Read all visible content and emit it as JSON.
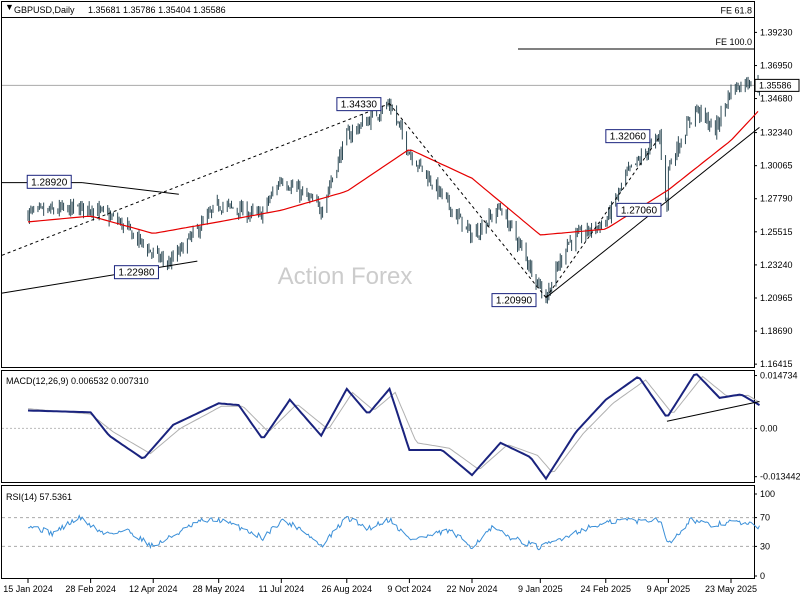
{
  "header": {
    "symbol": "GBPUSD,Daily",
    "ohlc": "1.35681 1.35786 1.35404 1.35586",
    "watermark": "Action Forex"
  },
  "colors": {
    "candle": "#2e4a55",
    "ma": "#e60000",
    "macd_line": "#1a237e",
    "signal_line": "#b0b0b0",
    "rsi_line": "#3a8fd8",
    "price_box": "#ffffff",
    "annotation_border": "#1a237e"
  },
  "chart_data": [
    {
      "type": "candlestick",
      "title": "GBPUSD,Daily",
      "x_ticks": [
        "15 Jan 2024",
        "28 Feb 2024",
        "12 Apr 2024",
        "28 May 2024",
        "11 Jul 2024",
        "26 Aug 2024",
        "9 Oct 2024",
        "22 Nov 2024",
        "9 Jan 2025",
        "24 Feb 2025",
        "9 Apr 2025",
        "23 May 2025"
      ],
      "y_ticks": [
        "1.39230",
        "1.36950",
        "1.34680",
        "1.32340",
        "1.30065",
        "1.27790",
        "1.25515",
        "1.23240",
        "1.20965",
        "1.18690",
        "1.16415"
      ],
      "ylim": [
        1.1615,
        1.4132
      ],
      "last_price": "1.35586",
      "trend_path": [
        [
          "15 Jan 2024",
          1.268
        ],
        [
          "28 Feb 2024",
          1.272
        ],
        [
          "19 Mar 2024",
          1.262
        ],
        [
          "12 Apr 2024",
          1.24
        ],
        [
          "23 Apr 2024",
          1.233
        ],
        [
          "28 May 2024",
          1.274
        ],
        [
          "26 Jun 2024",
          1.266
        ],
        [
          "11 Jul 2024",
          1.292
        ],
        [
          "8 Aug 2024",
          1.271
        ],
        [
          "26 Aug 2024",
          1.321
        ],
        [
          "25 Sep 2024",
          1.3433
        ],
        [
          "9 Oct 2024",
          1.31
        ],
        [
          "22 Nov 2024",
          1.252
        ],
        [
          "12 Dec 2024",
          1.272
        ],
        [
          "13 Jan 2025",
          1.2099
        ],
        [
          "28 Jan 2025",
          1.248
        ],
        [
          "24 Feb 2025",
          1.262
        ],
        [
          "11 Mar 2025",
          1.295
        ],
        [
          "3 Apr 2025",
          1.3206
        ],
        [
          "8 Apr 2025",
          1.2706
        ],
        [
          "9 Apr 2025",
          1.3
        ],
        [
          "28 Apr 2025",
          1.34
        ],
        [
          "12 May 2025",
          1.325
        ],
        [
          "23 May 2025",
          1.353
        ],
        [
          "6 Jun 2025",
          1.36
        ],
        [
          "12 Jun 2025",
          1.3559
        ]
      ],
      "moving_average": [
        [
          "15 Jan 2024",
          1.262
        ],
        [
          "28 Feb 2024",
          1.266
        ],
        [
          "12 Apr 2024",
          1.254
        ],
        [
          "28 May 2024",
          1.262
        ],
        [
          "11 Jul 2024",
          1.27
        ],
        [
          "26 Aug 2024",
          1.283
        ],
        [
          "9 Oct 2024",
          1.312
        ],
        [
          "22 Nov 2024",
          1.292
        ],
        [
          "9 Jan 2025",
          1.253
        ],
        [
          "24 Feb 2025",
          1.257
        ],
        [
          "9 Apr 2025",
          1.284
        ],
        [
          "23 May 2025",
          1.318
        ],
        [
          "12 Jun 2025",
          1.339
        ]
      ],
      "annotations": [
        {
          "label": "1.28920",
          "date": "20 Feb 2024",
          "value": 1.2892
        },
        {
          "label": "1.22980",
          "date": "22 Apr 2024",
          "value": 1.2298
        },
        {
          "label": "1.34330",
          "date": "26 Sep 2024",
          "value": 1.3433
        },
        {
          "label": "1.20990",
          "date": "13 Jan 2025",
          "value": 1.2099
        },
        {
          "label": "1.32060",
          "date": "3 Apr 2025",
          "value": 1.3206
        },
        {
          "label": "1.27060",
          "date": "8 Apr 2025",
          "value": 1.2706
        },
        {
          "label": "FE 61.8",
          "value": 1.4025
        },
        {
          "label": "FE 100.0",
          "value": 1.3809
        }
      ],
      "trendlines": [
        {
          "from": [
            "15 Jan 2024",
            1.289
          ],
          "to": [
            "22 Feb 2024",
            1.289
          ]
        },
        {
          "from": [
            "22 Feb 2024",
            1.289
          ],
          "to": [
            "30 Apr 2024",
            1.281
          ]
        },
        {
          "from": [
            "15 Jan 2024",
            1.213
          ],
          "to": [
            "13 May 2024",
            1.235
          ]
        },
        {
          "from": [
            "15 Jan 2024",
            1.239
          ],
          "to": [
            "25 Sep 2024",
            1.3433
          ],
          "dashed": true
        },
        {
          "from": [
            "25 Sep 2024",
            1.3433
          ],
          "to": [
            "13 Jan 2025",
            1.2099
          ],
          "dashed": true
        },
        {
          "from": [
            "13 Jan 2025",
            1.2099
          ],
          "to": [
            "3 Apr 2025",
            1.3206
          ],
          "dashed": true
        },
        {
          "from": [
            "13 Jan 2025",
            1.2099
          ],
          "to": [
            "12 Jun 2025",
            1.327
          ]
        }
      ]
    },
    {
      "type": "line",
      "title": "MACD(12,26,9) 0.006532 0.007310",
      "y_ticks": [
        "0.014734",
        "0.00",
        "-0.013442"
      ],
      "ylim": [
        -0.0152,
        0.016
      ],
      "series": [
        {
          "name": "MACD",
          "values": [
            [
              "15 Jan 2024",
              0.005
            ],
            [
              "28 Feb 2024",
              0.0045
            ],
            [
              "12 Mar 2024",
              -0.002
            ],
            [
              "5 Apr 2024",
              -0.0085
            ],
            [
              "26 Apr 2024",
              0.001
            ],
            [
              "28 May 2024",
              0.007
            ],
            [
              "11 Jun 2024",
              0.0065
            ],
            [
              "28 Jun 2024",
              -0.003
            ],
            [
              "17 Jul 2024",
              0.008
            ],
            [
              "8 Aug 2024",
              -0.002
            ],
            [
              "26 Aug 2024",
              0.011
            ],
            [
              "10 Sep 2024",
              0.004
            ],
            [
              "25 Sep 2024",
              0.011
            ],
            [
              "9 Oct 2024",
              -0.006
            ],
            [
              "1 Nov 2024",
              -0.006
            ],
            [
              "22 Nov 2024",
              -0.013
            ],
            [
              "12 Dec 2024",
              -0.004
            ],
            [
              "2 Jan 2025",
              -0.008
            ],
            [
              "13 Jan 2025",
              -0.014
            ],
            [
              "3 Feb 2025",
              -0.001
            ],
            [
              "24 Feb 2025",
              0.008
            ],
            [
              "19 Mar 2025",
              0.0145
            ],
            [
              "8 Apr 2025",
              0.003
            ],
            [
              "28 Apr 2025",
              0.0155
            ],
            [
              "15 May 2025",
              0.0085
            ],
            [
              "30 May 2025",
              0.0095
            ],
            [
              "12 Jun 2025",
              0.0065
            ]
          ]
        },
        {
          "name": "Signal",
          "values": [
            [
              "15 Jan 2024",
              0.0055
            ],
            [
              "28 Feb 2024",
              0.004
            ],
            [
              "15 Mar 2024",
              -0.001
            ],
            [
              "10 Apr 2024",
              -0.007
            ],
            [
              "1 May 2024",
              0.0
            ],
            [
              "30 May 2024",
              0.0062
            ],
            [
              "14 Jun 2024",
              0.0062
            ],
            [
              "2 Jul 2024",
              -0.001
            ],
            [
              "22 Jul 2024",
              0.0068
            ],
            [
              "13 Aug 2024",
              -0.0003
            ],
            [
              "30 Aug 2024",
              0.01
            ],
            [
              "14 Sep 2024",
              0.005
            ],
            [
              "29 Sep 2024",
              0.01
            ],
            [
              "14 Oct 2024",
              -0.004
            ],
            [
              "6 Nov 2024",
              -0.0055
            ],
            [
              "27 Nov 2024",
              -0.0115
            ],
            [
              "17 Dec 2024",
              -0.0045
            ],
            [
              "7 Jan 2025",
              -0.0075
            ],
            [
              "18 Jan 2025",
              -0.0125
            ],
            [
              "8 Feb 2025",
              -0.0015
            ],
            [
              "1 Mar 2025",
              0.007
            ],
            [
              "24 Mar 2025",
              0.0135
            ],
            [
              "12 Apr 2025",
              0.004
            ],
            [
              "3 May 2025",
              0.0145
            ],
            [
              "20 May 2025",
              0.009
            ],
            [
              "4 Jun 2025",
              0.0092
            ],
            [
              "12 Jun 2025",
              0.0073
            ]
          ]
        }
      ],
      "trendline": {
        "from": [
          "8 Apr 2025",
          0.002
        ],
        "to": [
          "12 Jun 2025",
          0.0075
        ]
      }
    },
    {
      "type": "line",
      "title": "RSI(14) 57.5361",
      "y_ticks": [
        "100",
        "70",
        "30",
        "0"
      ],
      "ylim": [
        0,
        100
      ],
      "series": [
        {
          "name": "RSI",
          "values": [
            [
              "15 Jan 2024",
              60
            ],
            [
              "1 Feb 2024",
              48
            ],
            [
              "20 Feb 2024",
              70
            ],
            [
              "8 Mar 2024",
              48
            ],
            [
              "25 Mar 2024",
              52
            ],
            [
              "12 Apr 2024",
              30
            ],
            [
              "26 Apr 2024",
              45
            ],
            [
              "15 May 2024",
              65
            ],
            [
              "28 May 2024",
              67
            ],
            [
              "14 Jun 2024",
              55
            ],
            [
              "28 Jun 2024",
              42
            ],
            [
              "11 Jul 2024",
              66
            ],
            [
              "25 Jul 2024",
              55
            ],
            [
              "8 Aug 2024",
              30
            ],
            [
              "26 Aug 2024",
              70
            ],
            [
              "10 Sep 2024",
              55
            ],
            [
              "25 Sep 2024",
              68
            ],
            [
              "9 Oct 2024",
              40
            ],
            [
              "22 Oct 2024",
              44
            ],
            [
              "6 Nov 2024",
              52
            ],
            [
              "22 Nov 2024",
              30
            ],
            [
              "6 Dec 2024",
              55
            ],
            [
              "20 Dec 2024",
              42
            ],
            [
              "9 Jan 2025",
              28
            ],
            [
              "28 Jan 2025",
              45
            ],
            [
              "10 Feb 2025",
              55
            ],
            [
              "24 Feb 2025",
              62
            ],
            [
              "10 Mar 2025",
              68
            ],
            [
              "19 Mar 2025",
              65
            ],
            [
              "3 Apr 2025",
              68
            ],
            [
              "9 Apr 2025",
              33
            ],
            [
              "25 Apr 2025",
              68
            ],
            [
              "9 May 2025",
              58
            ],
            [
              "23 May 2025",
              65
            ],
            [
              "6 Jun 2025",
              60
            ],
            [
              "12 Jun 2025",
              57.5
            ]
          ]
        }
      ]
    }
  ]
}
